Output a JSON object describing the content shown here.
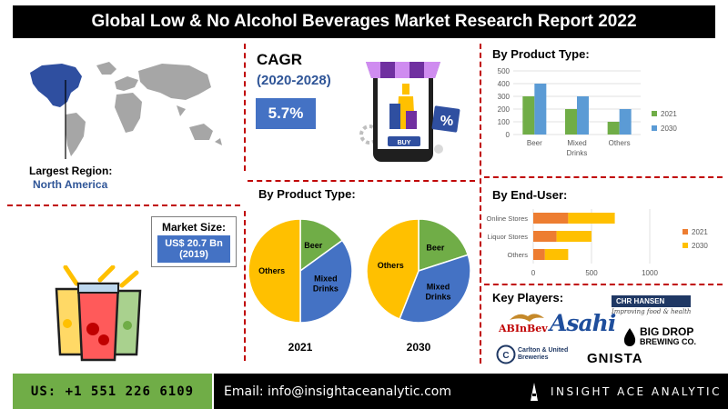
{
  "header": {
    "title": "Global Low & No Alcohol Beverages Market Research Report 2022"
  },
  "region": {
    "label": "Largest Region:",
    "value": "North America"
  },
  "market_size": {
    "label": "Market Size:",
    "value_line1": "US$ 20.7 Bn",
    "value_line2": "(2019)"
  },
  "cagr": {
    "label": "CAGR",
    "period": "(2020-2028)",
    "value": "5.7%"
  },
  "shop_illustration": {
    "buy_label": "BUY",
    "percent_label": "%"
  },
  "colors": {
    "green": "#70ad47",
    "blue": "#4472c4",
    "gold": "#ffc000",
    "orange": "#ed7d31",
    "red": "#c00000"
  },
  "chart_data": [
    {
      "type": "bar",
      "title": "By Product Type:",
      "categories": [
        "Beer",
        "Mixed Drinks",
        "Others"
      ],
      "category_lines": [
        [
          "Beer"
        ],
        [
          "Mixed",
          "Drinks"
        ],
        [
          "Others"
        ]
      ],
      "series": [
        {
          "name": "2021",
          "values": [
            300,
            200,
            100
          ],
          "color": "#70ad47"
        },
        {
          "name": "2030",
          "values": [
            400,
            300,
            200
          ],
          "color": "#5b9bd5"
        }
      ],
      "ylim": [
        0,
        500
      ],
      "yticks": [
        "0",
        "100",
        "200",
        "300",
        "400",
        "500"
      ],
      "legend": "right"
    },
    {
      "type": "pie",
      "title": "By Product Type:",
      "pies": [
        {
          "label": "2021",
          "slices": [
            {
              "name": "Beer",
              "value": 15,
              "color": "#70ad47"
            },
            {
              "name": "Mixed Drinks",
              "value": 35,
              "color": "#4472c4"
            },
            {
              "name": "Others",
              "value": 50,
              "color": "#ffc000"
            }
          ]
        },
        {
          "label": "2030",
          "slices": [
            {
              "name": "Beer",
              "value": 20,
              "color": "#70ad47"
            },
            {
              "name": "Mixed Drinks",
              "value": 36,
              "color": "#4472c4"
            },
            {
              "name": "Others",
              "value": 44,
              "color": "#ffc000"
            }
          ]
        }
      ]
    },
    {
      "type": "bar",
      "orientation": "horizontal",
      "stacked": true,
      "title": "By End-User:",
      "categories": [
        "Online Stores",
        "Liquor Stores",
        "Others"
      ],
      "series": [
        {
          "name": "2021",
          "values": [
            300,
            200,
            100
          ],
          "color": "#ed7d31"
        },
        {
          "name": "2030",
          "values": [
            400,
            300,
            200
          ],
          "color": "#ffc000"
        }
      ],
      "xlim": [
        0,
        1000
      ],
      "xticks": [
        "0",
        "500",
        "1000"
      ],
      "legend": "right"
    }
  ],
  "key_players": {
    "title": "Key Players:",
    "logos": [
      {
        "name": "CHR HANSEN",
        "tagline": "Improving food & health"
      },
      {
        "name": "ABInBev"
      },
      {
        "name": "Asahi"
      },
      {
        "name": "BIG DROP",
        "sub": "BREWING CO."
      },
      {
        "name": "Carlton & United",
        "sub": "Breweries"
      },
      {
        "name": "GNISTA"
      }
    ]
  },
  "footer": {
    "phone": "US: +1 551 226 6109",
    "email": "Email: info@insightaceanalytic.com",
    "brand": "INSIGHT ACE ANALYTIC"
  }
}
